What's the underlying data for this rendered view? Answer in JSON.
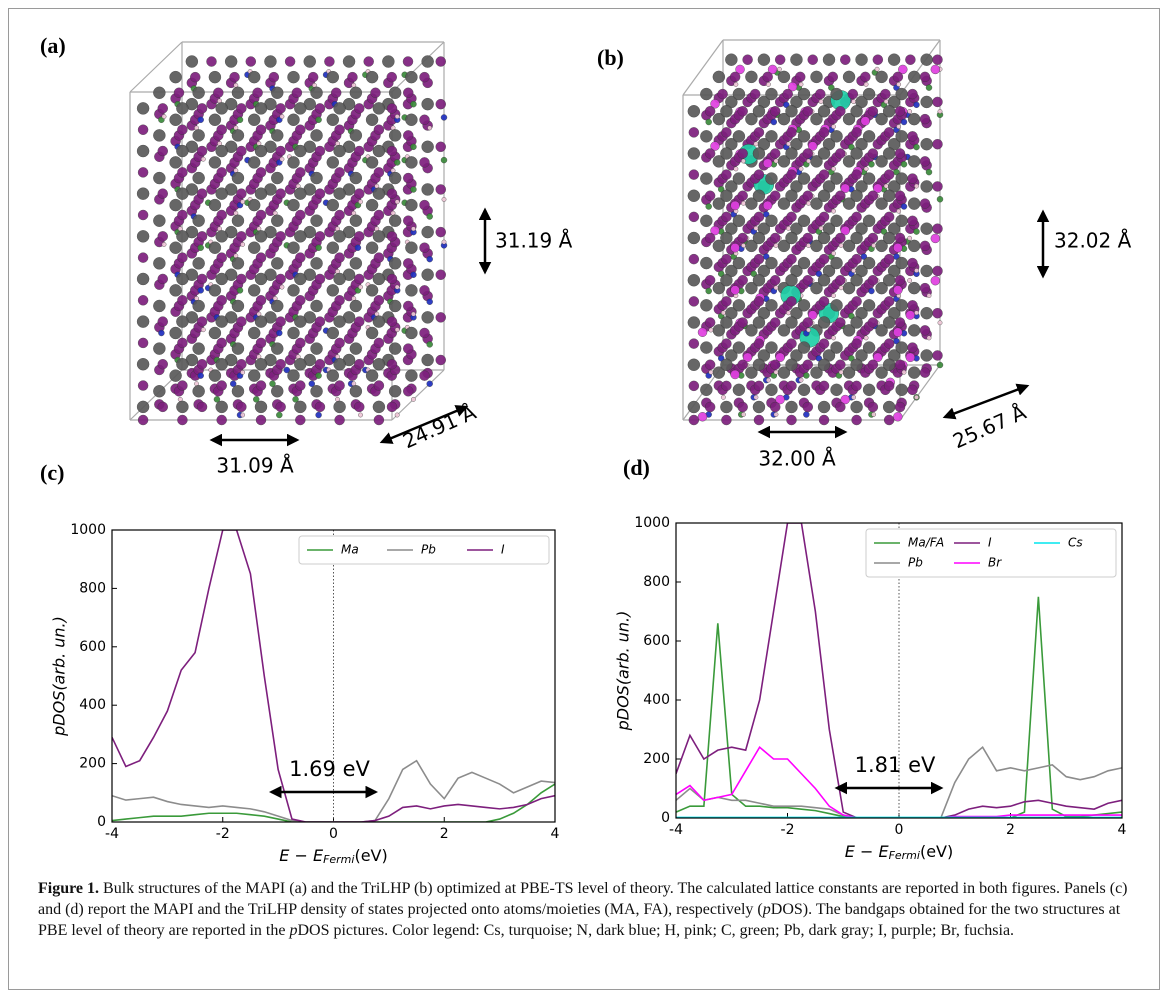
{
  "structures": [
    {
      "label": "(a)",
      "dimensions": [
        "31.19 Å",
        "31.09 Å",
        "24.91 Å"
      ]
    },
    {
      "label": "(b)",
      "dimensions": [
        "32.02 Å",
        "32.00 Å",
        "25.67 Å"
      ]
    }
  ],
  "chart_data": [
    {
      "type": "line",
      "panel_label": "(c)",
      "y_label": "pDOS(arb. un.)",
      "x_label": {
        "main": "E − E",
        "sub": "Fermi",
        "unit": "(eV)"
      },
      "annotation": "1.69 eV",
      "fermi_line": 0,
      "x": [
        -4,
        -3.75,
        -3.5,
        -3.25,
        -3,
        -2.75,
        -2.5,
        -2.25,
        -2,
        -1.75,
        -1.5,
        -1.25,
        -1,
        -0.75,
        -0.5,
        -0.25,
        0,
        0.25,
        0.5,
        0.75,
        1,
        1.25,
        1.5,
        1.75,
        2,
        2.25,
        2.5,
        2.75,
        3,
        3.25,
        3.5,
        3.75,
        4
      ],
      "xlim": [
        -4,
        4
      ],
      "xticks": [
        -4,
        -2,
        0,
        2,
        4
      ],
      "ylim": [
        0,
        1000
      ],
      "yticks": [
        0,
        200,
        400,
        600,
        800,
        1000
      ],
      "legend_loc": "upper right",
      "legend_columns": 3,
      "series": [
        {
          "name": "Ma",
          "color": "#3a9a3a",
          "values": [
            5,
            10,
            15,
            20,
            20,
            20,
            25,
            30,
            30,
            30,
            25,
            20,
            10,
            0,
            0,
            0,
            0,
            0,
            0,
            0,
            0,
            0,
            0,
            0,
            0,
            0,
            0,
            0,
            10,
            30,
            60,
            100,
            130
          ]
        },
        {
          "name": "Pb",
          "color": "#8c8c8c",
          "values": [
            90,
            75,
            80,
            85,
            70,
            60,
            55,
            50,
            55,
            50,
            45,
            35,
            20,
            5,
            0,
            0,
            0,
            0,
            0,
            5,
            80,
            180,
            210,
            130,
            80,
            150,
            170,
            150,
            130,
            100,
            120,
            140,
            135
          ]
        },
        {
          "name": "I",
          "color": "#7d1f7d",
          "values": [
            290,
            190,
            210,
            290,
            380,
            520,
            580,
            800,
            1000,
            1000,
            850,
            500,
            180,
            10,
            0,
            0,
            0,
            0,
            0,
            5,
            20,
            50,
            55,
            45,
            55,
            60,
            55,
            50,
            45,
            50,
            60,
            80,
            90
          ]
        }
      ]
    },
    {
      "type": "line",
      "panel_label": "(d)",
      "y_label": "pDOS(arb. un.)",
      "x_label": {
        "main": "E − E",
        "sub": "Fermi",
        "unit": "(eV)"
      },
      "annotation": "1.81 eV",
      "fermi_line": 0,
      "x": [
        -4,
        -3.75,
        -3.5,
        -3.25,
        -3,
        -2.75,
        -2.5,
        -2.25,
        -2,
        -1.75,
        -1.5,
        -1.25,
        -1,
        -0.75,
        -0.5,
        -0.25,
        0,
        0.25,
        0.5,
        0.75,
        1,
        1.25,
        1.5,
        1.75,
        2,
        2.25,
        2.5,
        2.75,
        3,
        3.25,
        3.5,
        3.75,
        4
      ],
      "xlim": [
        -4,
        4
      ],
      "xticks": [
        -4,
        -2,
        0,
        2,
        4
      ],
      "ylim": [
        0,
        1000
      ],
      "yticks": [
        0,
        200,
        400,
        600,
        800,
        1000
      ],
      "legend_loc": "upper right",
      "legend_columns": 3,
      "series": [
        {
          "name": "Ma/FA",
          "color": "#3a9a3a",
          "values": [
            20,
            40,
            40,
            660,
            80,
            40,
            40,
            35,
            35,
            30,
            25,
            15,
            5,
            0,
            0,
            0,
            0,
            0,
            0,
            0,
            0,
            0,
            0,
            0,
            0,
            20,
            750,
            30,
            5,
            5,
            10,
            15,
            20
          ]
        },
        {
          "name": "Pb",
          "color": "#8c8c8c",
          "values": [
            60,
            100,
            60,
            70,
            60,
            60,
            50,
            40,
            40,
            40,
            35,
            30,
            10,
            0,
            0,
            0,
            0,
            0,
            0,
            0,
            120,
            200,
            240,
            160,
            170,
            160,
            170,
            180,
            140,
            130,
            140,
            160,
            170
          ]
        },
        {
          "name": "I",
          "color": "#7d1f7d",
          "values": [
            150,
            280,
            200,
            230,
            240,
            230,
            400,
            700,
            1000,
            1000,
            700,
            300,
            20,
            0,
            0,
            0,
            0,
            0,
            0,
            0,
            10,
            30,
            40,
            35,
            40,
            55,
            60,
            50,
            40,
            35,
            30,
            50,
            60
          ]
        },
        {
          "name": "Br",
          "color": "#ff00ff",
          "values": [
            80,
            110,
            60,
            70,
            80,
            160,
            240,
            200,
            200,
            150,
            100,
            40,
            10,
            0,
            0,
            0,
            0,
            0,
            0,
            0,
            5,
            5,
            5,
            5,
            10,
            10,
            10,
            10,
            10,
            10,
            10,
            10,
            10
          ]
        },
        {
          "name": "Cs",
          "color": "#00e5ee",
          "values": [
            2,
            2,
            2,
            2,
            2,
            2,
            2,
            2,
            2,
            2,
            2,
            2,
            2,
            2,
            2,
            2,
            2,
            2,
            2,
            2,
            2,
            2,
            2,
            2,
            2,
            2,
            2,
            2,
            2,
            2,
            2,
            2,
            2
          ]
        }
      ]
    }
  ],
  "caption": {
    "label": "Figure 1.",
    "parts": [
      " Bulk structures of the MAPI (a) and the TriLHP (b) optimized at PBE-TS level of theory. The calculated lattice constants are reported in both figures. Panels (c) and (d) report the MAPI and the TriLHP density of states projected onto atoms/moieties (MA, FA), respectively (",
      "p",
      "DOS). The bandgaps obtained for the two structures at PBE level of theory are reported in the ",
      "p",
      "DOS pictures. Color legend: Cs, turquoise; N, dark blue; H, pink; C, green; Pb, dark gray; I, purple; Br, fuchsia."
    ]
  }
}
